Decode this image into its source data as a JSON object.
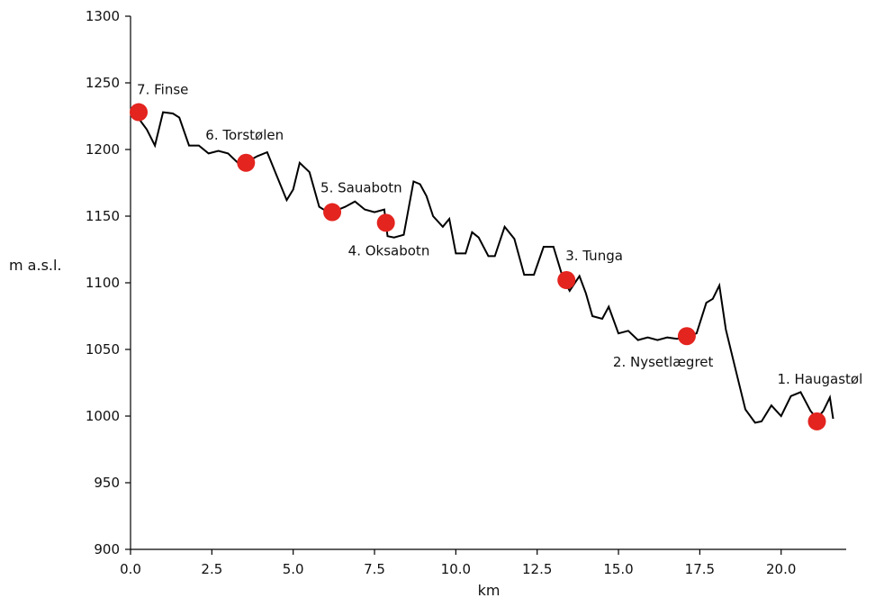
{
  "chart_data": {
    "type": "line",
    "title": "",
    "xlabel": "km",
    "ylabel": "m a.s.l.",
    "xlim": [
      0,
      22
    ],
    "ylim": [
      900,
      1300
    ],
    "x_ticks": [
      "0.0",
      "2.5",
      "5.0",
      "7.5",
      "10.0",
      "12.5",
      "15.0",
      "17.5",
      "20.0"
    ],
    "y_ticks": [
      "900",
      "950",
      "1000",
      "1050",
      "1100",
      "1150",
      "1200",
      "1250",
      "1300"
    ],
    "grid": false,
    "line_color": "#000000",
    "marker_color": "#e3241f",
    "series": [
      {
        "x": [
          0.2,
          0.5,
          0.75,
          1.0,
          1.3,
          1.5,
          1.8,
          2.1,
          2.4,
          2.7,
          3.0,
          3.3,
          3.6,
          3.9,
          4.2,
          4.5,
          4.8,
          5.0,
          5.2,
          5.5,
          5.8,
          6.0,
          6.3,
          6.6,
          6.9,
          7.2,
          7.5,
          7.8,
          7.9,
          8.1,
          8.4,
          8.7,
          8.9,
          9.1,
          9.3,
          9.6,
          9.8,
          10.0,
          10.3,
          10.5,
          10.7,
          11.0,
          11.2,
          11.5,
          11.8,
          12.1,
          12.4,
          12.7,
          13.0,
          13.3,
          13.5,
          13.8,
          14.0,
          14.2,
          14.5,
          14.7,
          15.0,
          15.3,
          15.6,
          15.9,
          16.2,
          16.5,
          16.8,
          17.1,
          17.4,
          17.7,
          17.9,
          18.1,
          18.3,
          18.6,
          18.9,
          19.2,
          19.4,
          19.7,
          20.0,
          20.3,
          20.6,
          20.9,
          21.1,
          21.3,
          21.5,
          21.6
        ],
        "y": [
          1225,
          1215,
          1203,
          1228,
          1227,
          1224,
          1203,
          1203,
          1197,
          1199,
          1197,
          1190,
          1191,
          1195,
          1198,
          1180,
          1162,
          1170,
          1190,
          1183,
          1157,
          1154,
          1154,
          1157,
          1161,
          1155,
          1153,
          1155,
          1135,
          1134,
          1136,
          1176,
          1174,
          1165,
          1150,
          1142,
          1148,
          1122,
          1122,
          1138,
          1134,
          1120,
          1120,
          1142,
          1133,
          1106,
          1106,
          1127,
          1127,
          1103,
          1094,
          1105,
          1092,
          1075,
          1073,
          1082,
          1062,
          1064,
          1057,
          1059,
          1057,
          1059,
          1058,
          1060,
          1062,
          1085,
          1088,
          1098,
          1065,
          1035,
          1005,
          995,
          996,
          1008,
          1000,
          1015,
          1018,
          1004,
          998,
          1004,
          1014,
          998
        ]
      }
    ],
    "stops": [
      {
        "label": "7. Finse",
        "x": 0.25,
        "y": 1228
      },
      {
        "label": "6. Torstølen",
        "x": 3.55,
        "y": 1190
      },
      {
        "label": "5. Sauabotn",
        "x": 6.2,
        "y": 1153
      },
      {
        "label": "4. Oksabotn",
        "x": 7.85,
        "y": 1145
      },
      {
        "label": "3. Tunga",
        "x": 13.4,
        "y": 1102
      },
      {
        "label": "2. Nysetlægret",
        "x": 17.1,
        "y": 1060
      },
      {
        "label": "1. Haugastøl",
        "x": 21.1,
        "y": 996
      }
    ]
  }
}
